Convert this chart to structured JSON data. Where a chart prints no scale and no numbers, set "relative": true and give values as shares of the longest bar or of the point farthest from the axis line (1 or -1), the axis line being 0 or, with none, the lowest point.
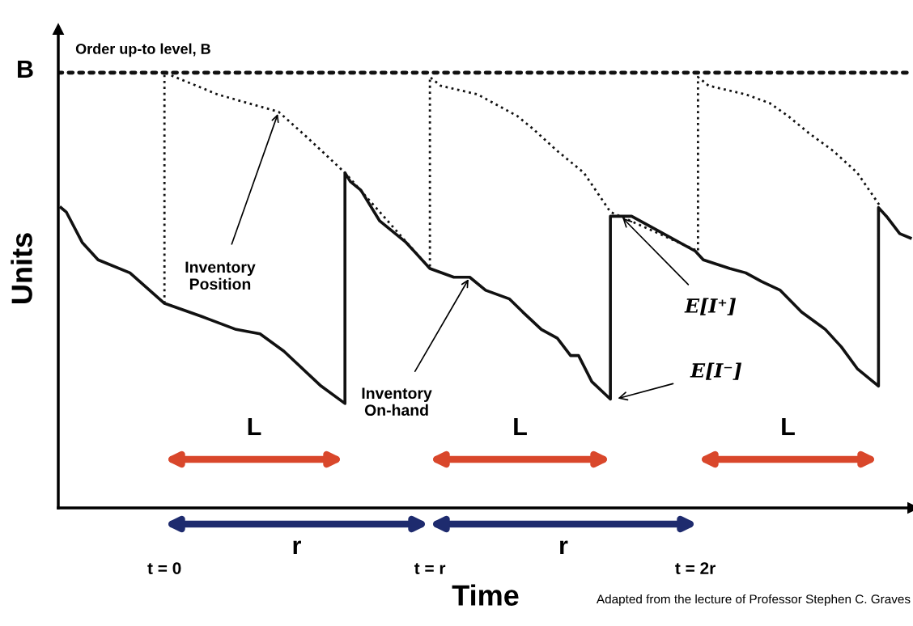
{
  "chart_data": {
    "type": "line",
    "relative": true,
    "xlabel": "Time",
    "ylabel": "Units",
    "xlim": [
      -0.4,
      2.82
    ],
    "xticks": [
      {
        "value": 0,
        "label": "t = 0"
      },
      {
        "value": 1,
        "label": "t = r"
      },
      {
        "value": 2,
        "label": "t = 2r"
      }
    ],
    "series": [
      {
        "name": "Inventory On-hand",
        "color": "#111111",
        "line_style": "solid",
        "x": [
          -0.39,
          -0.37,
          -0.31,
          -0.25,
          -0.13,
          0,
          0.14,
          0.27,
          0.36,
          0.45,
          0.59,
          0.68,
          0.68,
          0.7,
          0.74,
          0.81,
          0.91,
          1.0,
          1.09,
          1.15,
          1.21,
          1.3,
          1.35,
          1.42,
          1.48,
          1.53,
          1.56,
          1.61,
          1.68,
          1.68,
          1.76,
          1.82,
          2.0,
          2.03,
          2.13,
          2.19,
          2.25,
          2.32,
          2.4,
          2.49,
          2.55,
          2.61,
          2.69,
          2.69,
          2.72,
          2.77,
          2.81
        ],
        "values": [
          0.69,
          0.68,
          0.61,
          0.57,
          0.54,
          0.47,
          0.44,
          0.41,
          0.4,
          0.36,
          0.28,
          0.24,
          0.77,
          0.75,
          0.73,
          0.66,
          0.61,
          0.55,
          0.53,
          0.53,
          0.5,
          0.48,
          0.45,
          0.41,
          0.39,
          0.35,
          0.35,
          0.29,
          0.25,
          0.67,
          0.67,
          0.65,
          0.59,
          0.57,
          0.55,
          0.54,
          0.52,
          0.5,
          0.45,
          0.41,
          0.37,
          0.32,
          0.28,
          0.69,
          0.67,
          0.63,
          0.62
        ]
      },
      {
        "name": "Inventory Position",
        "color": "#111111",
        "line_style": "dotted",
        "x": [
          0,
          0,
          0.08,
          0.2,
          0.43,
          0.54,
          0.68,
          1.0,
          1.0,
          1.04,
          1.18,
          1.24,
          1.33,
          1.39,
          1.48,
          1.58,
          1.68,
          2.01,
          2.01,
          2.05,
          2.19,
          2.28,
          2.35,
          2.43,
          2.52,
          2.61,
          2.7
        ],
        "values": [
          0.47,
          1.0,
          0.98,
          0.95,
          0.91,
          0.85,
          0.77,
          0.55,
          0.99,
          0.97,
          0.95,
          0.93,
          0.9,
          0.87,
          0.82,
          0.77,
          0.68,
          0.59,
          0.99,
          0.97,
          0.95,
          0.93,
          0.9,
          0.86,
          0.82,
          0.77,
          0.69
        ]
      }
    ],
    "ref_lines": [
      {
        "axis": "y",
        "value": 1,
        "label": "Order up-to level, B",
        "color": "#111111",
        "line_style": "dotted"
      }
    ],
    "annotations": [
      {
        "text": "E[I⁺]",
        "x": 1.72,
        "y": 0.67
      },
      {
        "text": "E[I⁻]",
        "x": 1.7,
        "y": 0.25
      },
      "B",
      "L",
      "L",
      "L",
      "r",
      "r",
      "Adapted from the lecture of Professor Stephen C. Graves"
    ],
    "grid": false,
    "legend": false
  }
}
